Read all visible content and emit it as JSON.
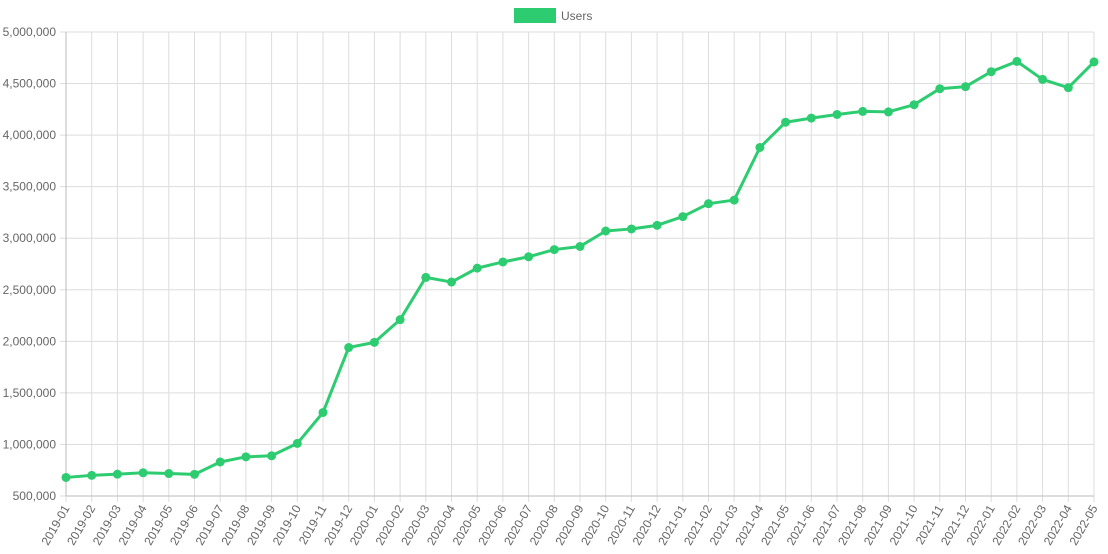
{
  "chart_data": {
    "type": "line",
    "legend": {
      "position": "top",
      "entries": [
        "Users"
      ]
    },
    "grid": true,
    "ylim": [
      500000,
      5000000
    ],
    "y_ticks": [
      500000,
      1000000,
      1500000,
      2000000,
      2500000,
      3000000,
      3500000,
      4000000,
      4500000,
      5000000
    ],
    "y_tick_labels": [
      "500,000",
      "1,000,000",
      "1,500,000",
      "2,000,000",
      "2,500,000",
      "3,000,000",
      "3,500,000",
      "4,000,000",
      "4,500,000",
      "5,000,000"
    ],
    "categories": [
      "2019-01",
      "2019-02",
      "2019-03",
      "2019-04",
      "2019-05",
      "2019-06",
      "2019-07",
      "2019-08",
      "2019-09",
      "2019-10",
      "2019-11",
      "2019-12",
      "2020-01",
      "2020-02",
      "2020-03",
      "2020-04",
      "2020-05",
      "2020-06",
      "2020-07",
      "2020-08",
      "2020-09",
      "2020-10",
      "2020-11",
      "2020-12",
      "2021-01",
      "2021-02",
      "2021-03",
      "2021-04",
      "2021-05",
      "2021-06",
      "2021-07",
      "2021-08",
      "2021-09",
      "2021-10",
      "2021-11",
      "2021-12",
      "2022-01",
      "2022-02",
      "2022-03",
      "2022-04",
      "2022-05"
    ],
    "series": [
      {
        "name": "Users",
        "color": "#2ecc71",
        "values": [
          680000,
          700000,
          712000,
          725000,
          718000,
          710000,
          830000,
          880000,
          890000,
          1010000,
          1310000,
          1940000,
          1990000,
          2210000,
          2620000,
          2575000,
          2710000,
          2770000,
          2820000,
          2890000,
          2920000,
          3070000,
          3090000,
          3125000,
          3210000,
          3335000,
          3370000,
          3880000,
          4125000,
          4165000,
          4200000,
          4230000,
          4225000,
          4295000,
          4450000,
          4470000,
          4615000,
          4715000,
          4540000,
          4460000,
          4710000
        ]
      }
    ]
  }
}
